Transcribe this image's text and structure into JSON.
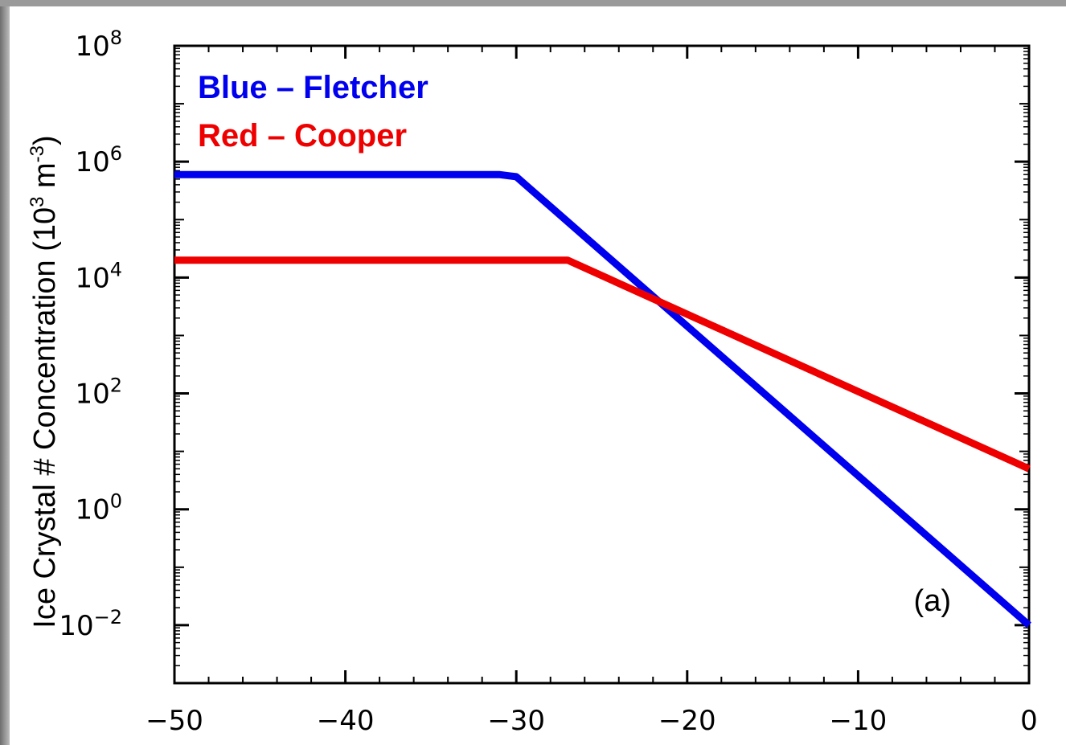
{
  "chart_data": {
    "type": "line",
    "title": "",
    "xlabel": "",
    "ylabel": "Ice Crystal # Concentration (10",
    "ylabel_sup1": "3",
    "ylabel_mid": " m",
    "ylabel_sup2": "-3",
    "ylabel_end": ")",
    "xlim": [
      -50,
      0
    ],
    "ylim_log10": [
      -3,
      8
    ],
    "y_scale": "log",
    "x_ticks": [
      -50,
      -40,
      -30,
      -20,
      -10,
      0
    ],
    "x_tick_labels": [
      "−50",
      "−40",
      "−30",
      "−20",
      "−10",
      "0"
    ],
    "y_ticks_log10": [
      -2,
      0,
      2,
      4,
      6,
      8
    ],
    "y_tick_base": "10",
    "y_tick_exponents": [
      "−2",
      "0",
      "2",
      "4",
      "6",
      "8"
    ],
    "grid": false,
    "legend_position": "top-left",
    "series": [
      {
        "name": "Blue – Fletcher",
        "color": "#0000ee",
        "x": [
          -50,
          -31,
          -30,
          0
        ],
        "y": [
          600000,
          600000,
          550000,
          0.01
        ]
      },
      {
        "name": "Red – Cooper",
        "color": "#ee0000",
        "x": [
          -50,
          -27,
          0
        ],
        "y": [
          20000,
          20000,
          5
        ]
      }
    ],
    "annotations": [
      {
        "text": "(a)",
        "position": "bottom-right"
      }
    ]
  },
  "colors": {
    "frame_edge": "#6e6e6e",
    "axes": "#000000"
  }
}
